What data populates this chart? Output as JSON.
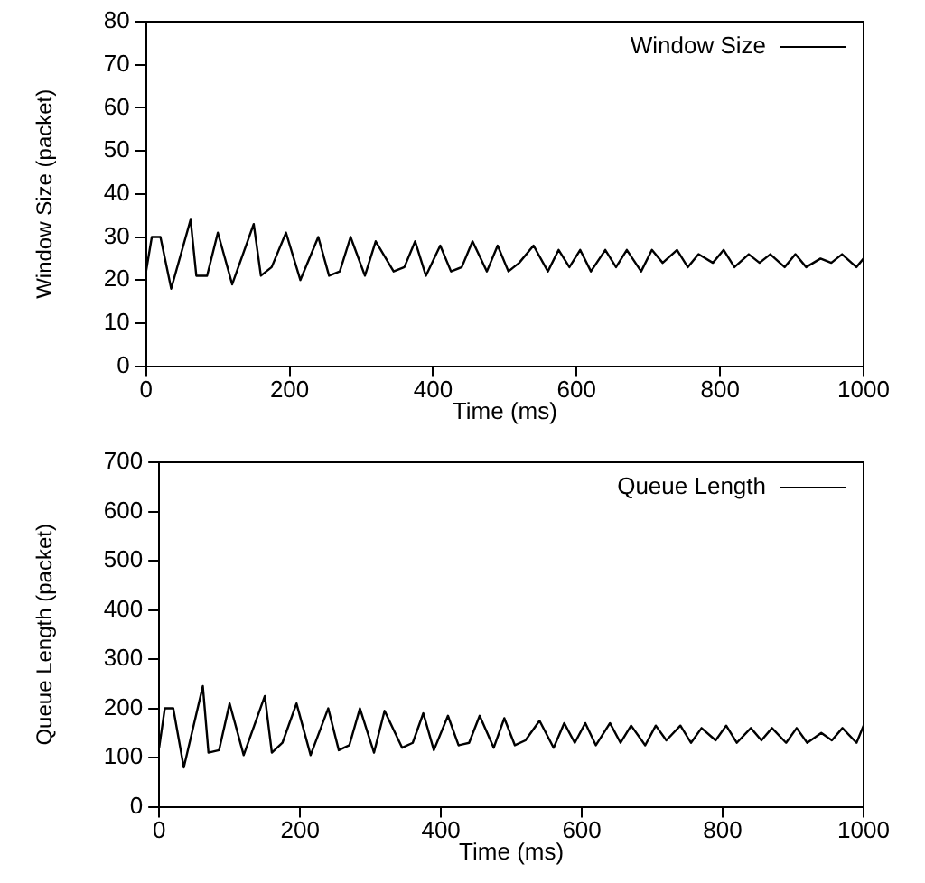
{
  "chart_data": [
    {
      "type": "line",
      "xlabel": "Time (ms)",
      "ylabel": "Window Size (packet)",
      "xlim": [
        0,
        1000
      ],
      "xticks": [
        0,
        200,
        400,
        600,
        800,
        1000
      ],
      "ylim": [
        0,
        80
      ],
      "yticks": [
        0,
        10,
        20,
        30,
        40,
        50,
        60,
        70,
        80
      ],
      "grid": false,
      "legend": "top right",
      "marker": "none",
      "x": [
        0,
        8,
        20,
        35,
        62,
        70,
        85,
        100,
        120,
        150,
        160,
        175,
        195,
        215,
        240,
        255,
        270,
        285,
        305,
        320,
        345,
        360,
        375,
        390,
        410,
        425,
        440,
        455,
        475,
        490,
        505,
        520,
        540,
        560,
        575,
        590,
        605,
        620,
        640,
        655,
        670,
        690,
        705,
        720,
        740,
        755,
        770,
        790,
        805,
        820,
        840,
        855,
        870,
        890,
        905,
        920,
        940,
        955,
        970,
        990,
        1000
      ],
      "series": [
        {
          "name": "Window Size",
          "color": "#000000",
          "values": [
            22,
            30,
            30,
            18,
            34,
            21,
            21,
            31,
            19,
            33,
            21,
            23,
            31,
            20,
            30,
            21,
            22,
            30,
            21,
            29,
            22,
            23,
            29,
            21,
            28,
            22,
            23,
            29,
            22,
            28,
            22,
            24,
            28,
            22,
            27,
            23,
            27,
            22,
            27,
            23,
            27,
            22,
            27,
            24,
            27,
            23,
            26,
            24,
            27,
            23,
            26,
            24,
            26,
            23,
            26,
            23,
            25,
            24,
            26,
            23,
            25
          ]
        }
      ]
    },
    {
      "type": "line",
      "xlabel": "Time (ms)",
      "ylabel": "Queue Length (packet)",
      "xlim": [
        0,
        1000
      ],
      "xticks": [
        0,
        200,
        400,
        600,
        800,
        1000
      ],
      "ylim": [
        0,
        700
      ],
      "yticks": [
        0,
        100,
        200,
        300,
        400,
        500,
        600,
        700
      ],
      "grid": false,
      "legend": "top right",
      "marker": "none",
      "x": [
        0,
        8,
        20,
        35,
        62,
        70,
        85,
        100,
        120,
        150,
        160,
        175,
        195,
        215,
        240,
        255,
        270,
        285,
        305,
        320,
        345,
        360,
        375,
        390,
        410,
        425,
        440,
        455,
        475,
        490,
        505,
        520,
        540,
        560,
        575,
        590,
        605,
        620,
        640,
        655,
        670,
        690,
        705,
        720,
        740,
        755,
        770,
        790,
        805,
        820,
        840,
        855,
        870,
        890,
        905,
        920,
        940,
        955,
        970,
        990,
        1000
      ],
      "series": [
        {
          "name": "Queue Length",
          "color": "#000000",
          "values": [
            120,
            200,
            200,
            80,
            245,
            110,
            115,
            210,
            105,
            225,
            110,
            130,
            210,
            105,
            200,
            115,
            125,
            200,
            110,
            195,
            120,
            130,
            190,
            115,
            185,
            125,
            130,
            185,
            120,
            180,
            125,
            135,
            175,
            120,
            170,
            130,
            170,
            125,
            170,
            130,
            165,
            125,
            165,
            135,
            165,
            130,
            160,
            135,
            165,
            130,
            160,
            135,
            160,
            130,
            160,
            130,
            150,
            135,
            160,
            130,
            165
          ]
        }
      ]
    }
  ]
}
